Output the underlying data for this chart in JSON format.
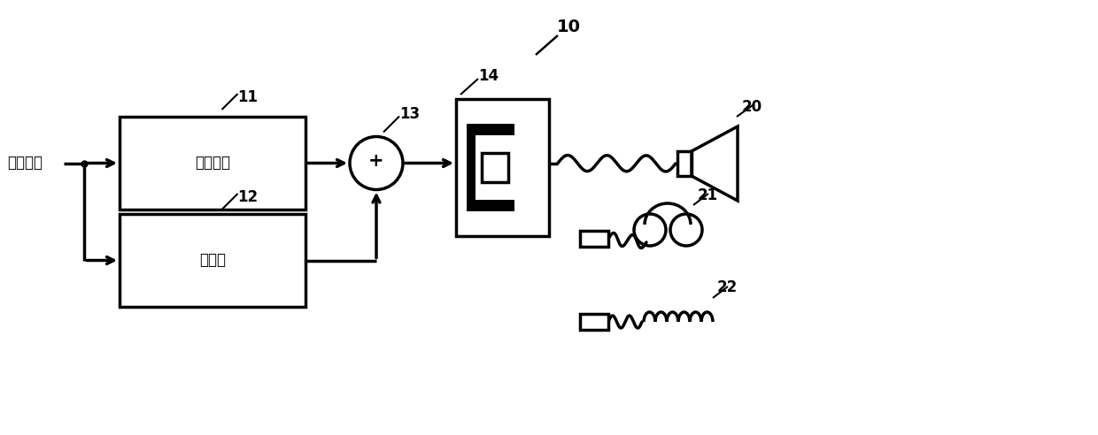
{
  "bg_color": "#ffffff",
  "line_color": "#000000",
  "text_color": "#000000",
  "label_10": "10",
  "label_11": "11",
  "label_12": "12",
  "label_13": "13",
  "label_14": "14",
  "label_20": "20",
  "label_21": "21",
  "label_22": "22",
  "input_label": "音响信号",
  "box1_label": "过采样部",
  "box2_label": "调制部",
  "plus_symbol": "+",
  "figsize": [
    12.4,
    4.92
  ],
  "dpi": 100,
  "xlim": [
    0,
    12.4
  ],
  "ylim": [
    0,
    4.92
  ]
}
